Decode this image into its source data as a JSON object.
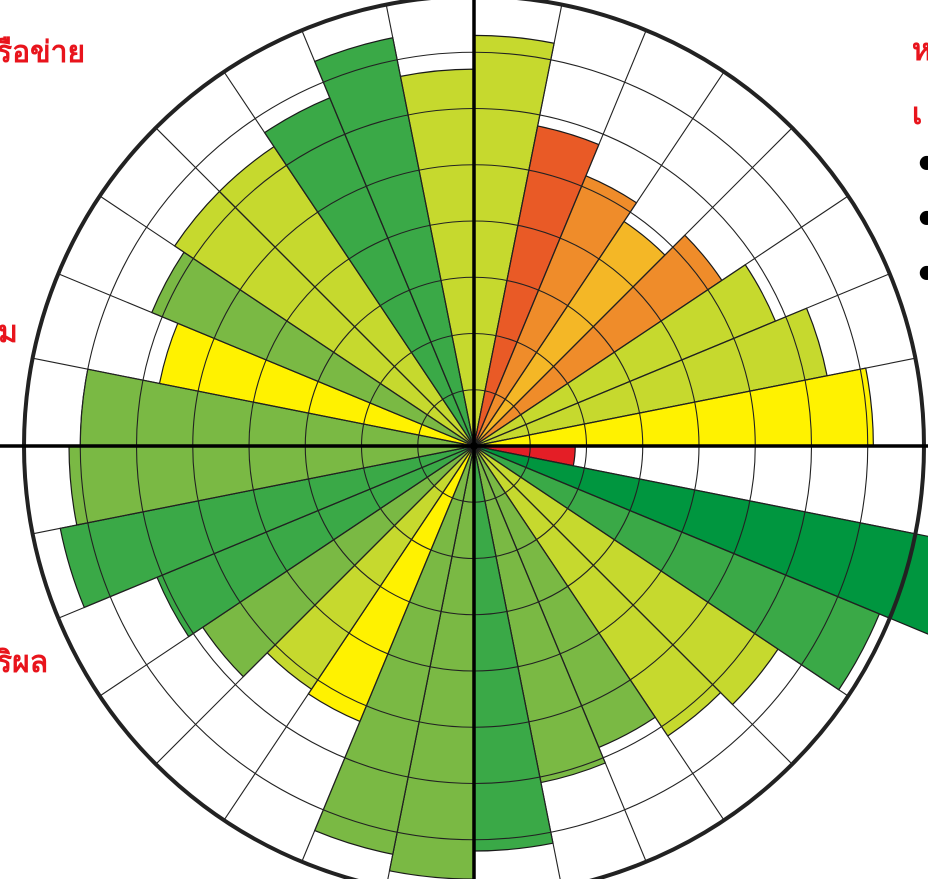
{
  "labels": {
    "top_left": "รือข่าย",
    "mid_left": "ม",
    "bottom_left": "ริผล",
    "top_right_1": "ห",
    "top_right_2": "เ"
  },
  "bullets": [
    "•",
    "•",
    "•"
  ],
  "colors": {
    "red": "#e41e26",
    "red_orange": "#e95a26",
    "orange": "#ef8c2a",
    "amber": "#f4b726",
    "yellow": "#fff200",
    "yellow_green": "#c6d92e",
    "light_green": "#7ab944",
    "green": "#3aa947",
    "dark_green": "#00963f"
  },
  "chart_data": {
    "type": "polar-bar",
    "rings": 8,
    "segments": 32,
    "values": [
      7.3,
      5.8,
      5.2,
      4.8,
      5.3,
      5.8,
      6.4,
      7.1,
      1.8,
      9.1,
      7.8,
      6.5,
      6.2,
      5.8,
      6.1,
      7.2,
      7.7,
      7.4,
      5.3,
      5.2,
      5.8,
      6.1,
      7.5,
      7.2,
      7.0,
      5.7,
      6.2,
      6.4,
      6.4,
      6.7,
      7.4,
      6.7
    ],
    "segment_colors": [
      "yellow_green",
      "red_orange",
      "orange",
      "amber",
      "orange",
      "yellow_green",
      "yellow_green",
      "yellow",
      "red",
      "dark_green",
      "green",
      "yellow_green",
      "yellow_green",
      "light_green",
      "light_green",
      "green",
      "light_green",
      "light_green",
      "yellow",
      "yellow_green",
      "light_green",
      "green",
      "green",
      "light_green",
      "light_green",
      "yellow",
      "light_green",
      "yellow_green",
      "yellow_green",
      "green",
      "green",
      "yellow_green"
    ]
  }
}
